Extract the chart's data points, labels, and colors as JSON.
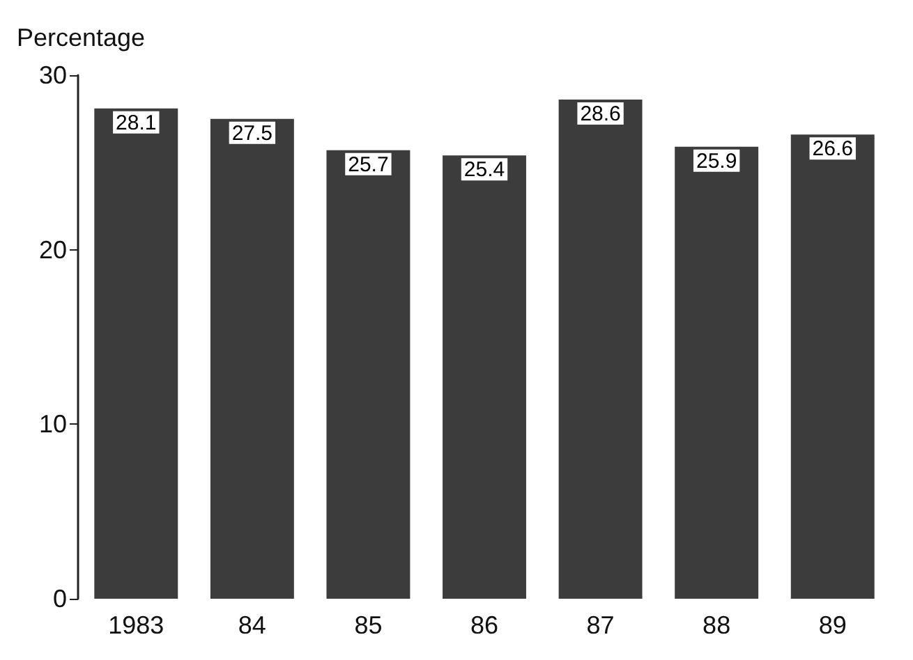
{
  "chart_data": {
    "type": "bar",
    "ylabel": "Percentage",
    "categories": [
      "1983",
      "84",
      "85",
      "86",
      "87",
      "88",
      "89"
    ],
    "values": [
      28.1,
      27.5,
      25.7,
      25.4,
      28.6,
      25.9,
      26.6
    ],
    "color": "#3c3c3c",
    "ylim": [
      0,
      30
    ],
    "yticks": [
      0,
      10,
      20,
      30
    ],
    "grid": false,
    "data_labels": true
  }
}
